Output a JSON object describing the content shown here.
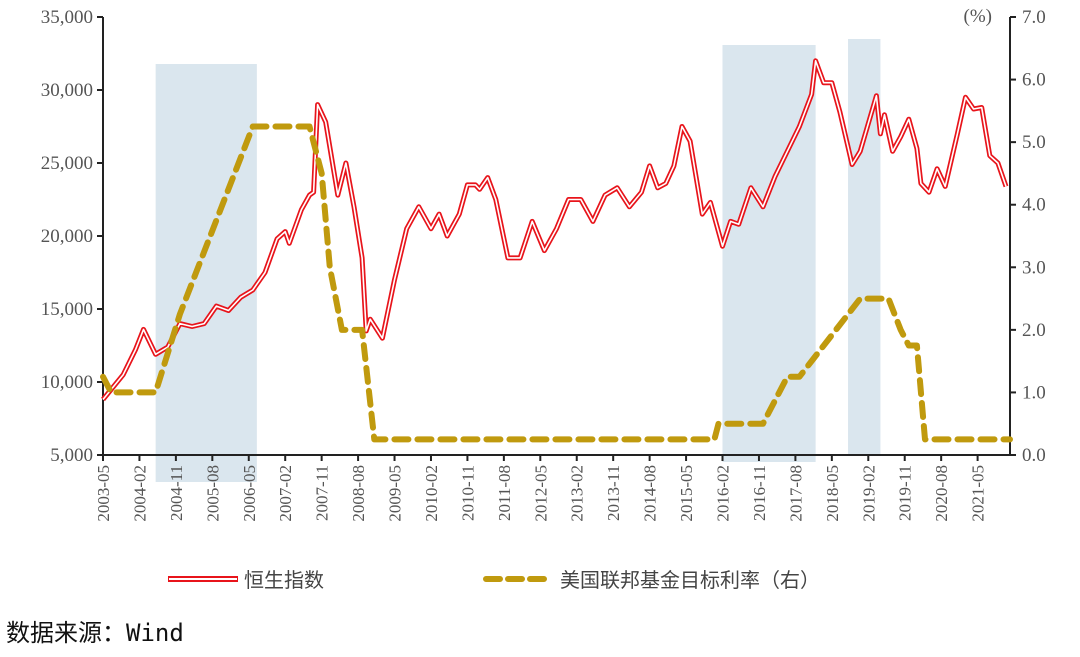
{
  "chart_data": {
    "type": "line",
    "title": "",
    "xlabel": "",
    "ylabel_left": "",
    "ylabel_right": "(%)",
    "x_range": [
      "2003-05",
      "2022-01"
    ],
    "ylim_left": [
      5000,
      35000
    ],
    "ylim_right": [
      0.0,
      7.0
    ],
    "yticks_left": [
      "5,000",
      "10,000",
      "15,000",
      "20,000",
      "25,000",
      "30,000",
      "35,000"
    ],
    "yticks_right": [
      "0.0",
      "1.0",
      "2.0",
      "3.0",
      "4.0",
      "5.0",
      "6.0",
      "7.0"
    ],
    "xticks": [
      "2003-05",
      "2004-02",
      "2004-11",
      "2005-08",
      "2006-05",
      "2007-02",
      "2007-11",
      "2008-08",
      "2009-05",
      "2010-02",
      "2010-11",
      "2011-08",
      "2012-05",
      "2013-02",
      "2013-11",
      "2014-08",
      "2015-05",
      "2016-02",
      "2016-11",
      "2017-08",
      "2018-05",
      "2019-02",
      "2019-11",
      "2020-08",
      "2021-05"
    ],
    "grid": false,
    "legend_position": "bottom",
    "shaded_periods": [
      [
        "2004-06",
        "2006-07"
      ],
      [
        "2016-02",
        "2018-01"
      ],
      [
        "2018-09",
        "2019-05"
      ]
    ],
    "series": [
      {
        "name": "恒生指数",
        "axis": "left",
        "color": "#E8141B",
        "style": "double-line",
        "points": [
          [
            "2003-05",
            8800
          ],
          [
            "2003-10",
            10500
          ],
          [
            "2004-01",
            12200
          ],
          [
            "2004-03",
            13600
          ],
          [
            "2004-06",
            11900
          ],
          [
            "2004-09",
            12400
          ],
          [
            "2004-12",
            14000
          ],
          [
            "2005-03",
            13800
          ],
          [
            "2005-06",
            14000
          ],
          [
            "2005-09",
            15200
          ],
          [
            "2005-12",
            14900
          ],
          [
            "2006-03",
            15800
          ],
          [
            "2006-06",
            16300
          ],
          [
            "2006-09",
            17500
          ],
          [
            "2006-12",
            19800
          ],
          [
            "2007-02",
            20300
          ],
          [
            "2007-03",
            19500
          ],
          [
            "2007-06",
            21800
          ],
          [
            "2007-08",
            22800
          ],
          [
            "2007-09",
            23000
          ],
          [
            "2007-10",
            29000
          ],
          [
            "2007-12",
            27800
          ],
          [
            "2008-03",
            22800
          ],
          [
            "2008-05",
            25000
          ],
          [
            "2008-07",
            22000
          ],
          [
            "2008-09",
            18500
          ],
          [
            "2008-10",
            13500
          ],
          [
            "2008-11",
            14300
          ],
          [
            "2009-02",
            13000
          ],
          [
            "2009-05",
            17000
          ],
          [
            "2009-08",
            20500
          ],
          [
            "2009-11",
            22000
          ],
          [
            "2010-02",
            20500
          ],
          [
            "2010-04",
            21500
          ],
          [
            "2010-06",
            20000
          ],
          [
            "2010-09",
            21500
          ],
          [
            "2010-11",
            23500
          ],
          [
            "2011-01",
            23500
          ],
          [
            "2011-02",
            23200
          ],
          [
            "2011-04",
            24000
          ],
          [
            "2011-06",
            22500
          ],
          [
            "2011-09",
            18500
          ],
          [
            "2011-12",
            18500
          ],
          [
            "2012-03",
            21000
          ],
          [
            "2012-06",
            19000
          ],
          [
            "2012-09",
            20500
          ],
          [
            "2012-12",
            22500
          ],
          [
            "2013-03",
            22500
          ],
          [
            "2013-06",
            21000
          ],
          [
            "2013-09",
            22800
          ],
          [
            "2013-12",
            23300
          ],
          [
            "2014-03",
            22000
          ],
          [
            "2014-06",
            23000
          ],
          [
            "2014-08",
            24800
          ],
          [
            "2014-10",
            23300
          ],
          [
            "2014-12",
            23600
          ],
          [
            "2015-02",
            24800
          ],
          [
            "2015-04",
            27500
          ],
          [
            "2015-06",
            26500
          ],
          [
            "2015-09",
            21500
          ],
          [
            "2015-11",
            22300
          ],
          [
            "2016-02",
            19300
          ],
          [
            "2016-04",
            21000
          ],
          [
            "2016-06",
            20800
          ],
          [
            "2016-09",
            23300
          ],
          [
            "2016-12",
            22000
          ],
          [
            "2017-03",
            24100
          ],
          [
            "2017-06",
            25800
          ],
          [
            "2017-09",
            27500
          ],
          [
            "2017-12",
            29700
          ],
          [
            "2018-01",
            32000
          ],
          [
            "2018-03",
            30500
          ],
          [
            "2018-05",
            30500
          ],
          [
            "2018-07",
            28500
          ],
          [
            "2018-10",
            24900
          ],
          [
            "2018-12",
            25800
          ],
          [
            "2019-04",
            29600
          ],
          [
            "2019-05",
            27000
          ],
          [
            "2019-06",
            28300
          ],
          [
            "2019-08",
            25800
          ],
          [
            "2019-10",
            26800
          ],
          [
            "2019-12",
            28000
          ],
          [
            "2020-02",
            26000
          ],
          [
            "2020-03",
            23600
          ],
          [
            "2020-05",
            23000
          ],
          [
            "2020-07",
            24600
          ],
          [
            "2020-09",
            23400
          ],
          [
            "2020-12",
            27000
          ],
          [
            "2021-02",
            29500
          ],
          [
            "2021-04",
            28700
          ],
          [
            "2021-06",
            28800
          ],
          [
            "2021-08",
            25500
          ],
          [
            "2021-10",
            25000
          ],
          [
            "2021-12",
            23400
          ]
        ]
      },
      {
        "name": "美国联邦基金目标利率（右）",
        "axis": "right",
        "color": "#C09A0E",
        "style": "dashed",
        "points": [
          [
            "2003-05",
            1.25
          ],
          [
            "2003-07",
            1.0
          ],
          [
            "2004-06",
            1.0
          ],
          [
            "2004-12",
            2.25
          ],
          [
            "2005-06",
            3.25
          ],
          [
            "2005-12",
            4.25
          ],
          [
            "2006-06",
            5.25
          ],
          [
            "2007-08",
            5.25
          ],
          [
            "2007-11",
            4.5
          ],
          [
            "2008-01",
            3.0
          ],
          [
            "2008-04",
            2.0
          ],
          [
            "2008-09",
            2.0
          ],
          [
            "2008-12",
            0.25
          ],
          [
            "2015-12",
            0.25
          ],
          [
            "2016-01",
            0.5
          ],
          [
            "2016-12",
            0.5
          ],
          [
            "2017-06",
            1.25
          ],
          [
            "2017-09",
            1.25
          ],
          [
            "2017-12",
            1.5
          ],
          [
            "2018-06",
            2.0
          ],
          [
            "2018-12",
            2.5
          ],
          [
            "2019-07",
            2.5
          ],
          [
            "2019-10",
            2.0
          ],
          [
            "2019-12",
            1.75
          ],
          [
            "2020-02",
            1.75
          ],
          [
            "2020-04",
            0.25
          ],
          [
            "2022-01",
            0.25
          ]
        ]
      }
    ]
  },
  "legend": {
    "items": [
      "恒生指数",
      "美国联邦基金目标利率（右）"
    ]
  },
  "source": "数据来源：Wind",
  "colors": {
    "shade": "#DAE6EE",
    "axis": "#222222"
  }
}
